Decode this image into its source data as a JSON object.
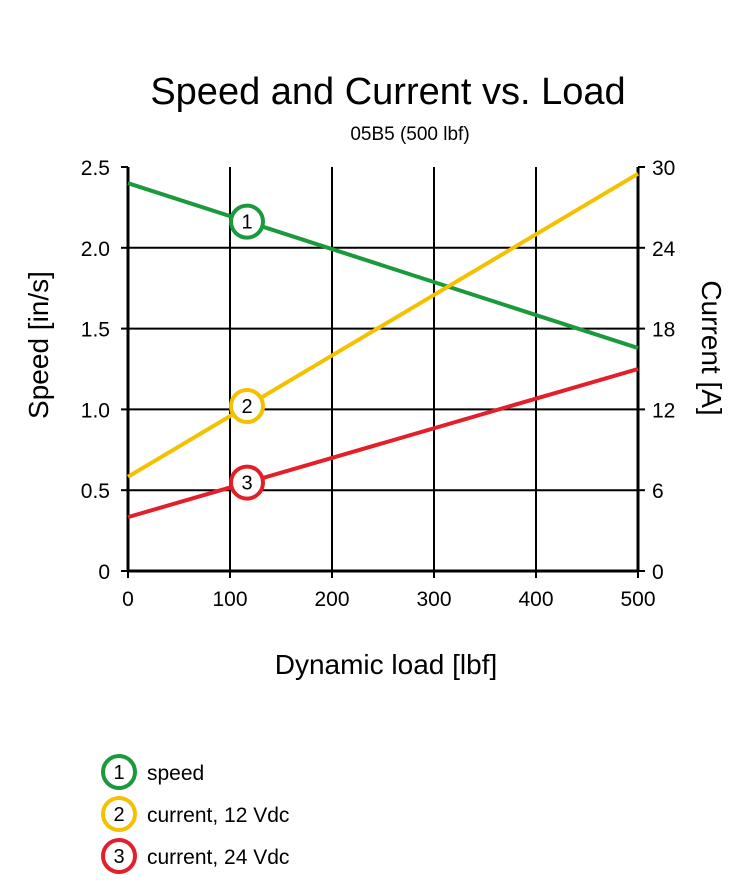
{
  "chart_data": {
    "type": "line",
    "title": "Speed and Current vs. Load",
    "subtitle": "05B5 (500 lbf)",
    "xlabel": "Dynamic load [lbf]",
    "ylabel_left": "Speed [in/s]",
    "ylabel_right": "Current [A]",
    "xlim": [
      0,
      500
    ],
    "ylim_left": [
      0,
      2.5
    ],
    "ylim_right": [
      0,
      30
    ],
    "x_ticks": [
      "0",
      "100",
      "200",
      "300",
      "400",
      "500"
    ],
    "y_left_ticks": [
      "0",
      "0.5",
      "1.0",
      "1.5",
      "2.0",
      "2.5"
    ],
    "y_right_ticks": [
      "0",
      "6",
      "12",
      "18",
      "24",
      "30"
    ],
    "grid": true,
    "legend_position": "bottom-left",
    "series": [
      {
        "name": "speed",
        "marker": "1",
        "axis": "left",
        "color": "#1a9a3c",
        "x": [
          0,
          500
        ],
        "y": [
          2.4,
          1.38
        ]
      },
      {
        "name": "current, 12 Vdc",
        "marker": "2",
        "axis": "right",
        "color": "#f5c000",
        "x": [
          0,
          500
        ],
        "y": [
          7.0,
          29.5
        ]
      },
      {
        "name": "current, 24 Vdc",
        "marker": "3",
        "axis": "right",
        "color": "#e3202a",
        "x": [
          0,
          500
        ],
        "y": [
          4.0,
          15.0
        ]
      }
    ]
  }
}
